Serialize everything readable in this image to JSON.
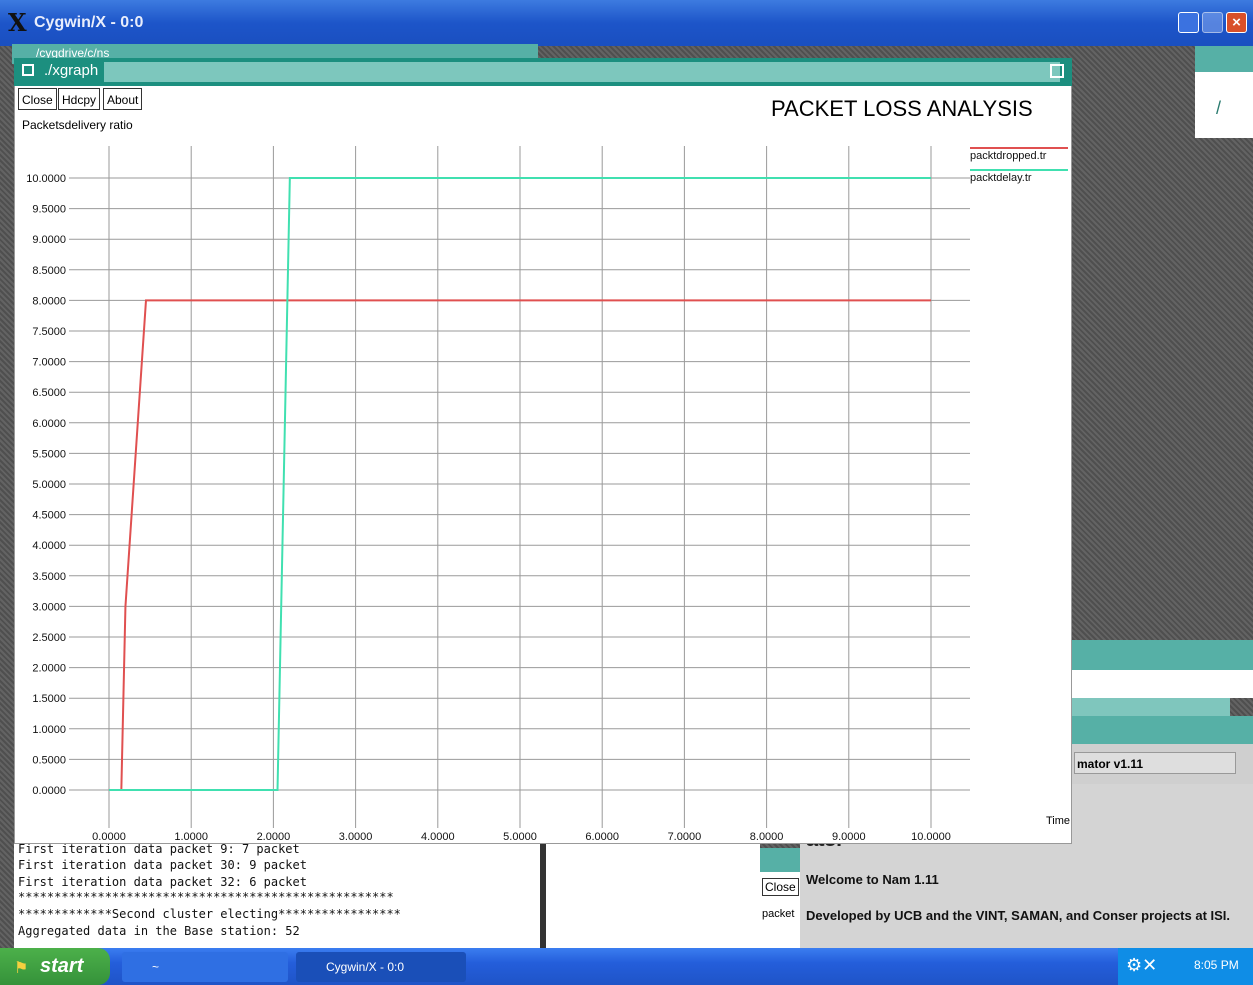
{
  "window": {
    "title": "Cygwin/X - 0:0",
    "logo": "X",
    "close_glyph": "×"
  },
  "background_windows": {
    "cygdrive_title": "/cygdrive/c/ns",
    "nam_field": "mator v1.11",
    "nam_big": "ator",
    "nam_welcome": "Welcome to Nam 1.11",
    "nam_developed": "Developed by UCB and the VINT, SAMAN, and Conser projects at ISI.",
    "small_close": "Close",
    "small_packet": "packet"
  },
  "terminal": {
    "lines": [
      "First iteration data packet 9: 7 packet",
      "First iteration data packet 30: 9 packet",
      "First iteration data packet 32: 6 packet",
      "****************************************************",
      "*************Second cluster electing*****************",
      "Aggregated data in the Base station: 52"
    ]
  },
  "xgraph": {
    "title": "./xgraph",
    "buttons": {
      "close": "Close",
      "hdcpy": "Hdcpy",
      "about": "About"
    }
  },
  "chart_data": {
    "type": "line",
    "title": "PACKET LOSS ANALYSIS",
    "ylabel": "Packetsdelivery ratio",
    "xlabel": "Time",
    "xlim": [
      0,
      10
    ],
    "ylim": [
      0,
      10
    ],
    "x_ticks": [
      "0.0000",
      "1.0000",
      "2.0000",
      "3.0000",
      "4.0000",
      "5.0000",
      "6.0000",
      "7.0000",
      "8.0000",
      "9.0000",
      "10.0000"
    ],
    "y_ticks": [
      "0.0000",
      "0.5000",
      "1.0000",
      "1.5000",
      "2.0000",
      "2.5000",
      "3.0000",
      "3.5000",
      "4.0000",
      "4.5000",
      "5.0000",
      "5.5000",
      "6.0000",
      "6.5000",
      "7.0000",
      "7.5000",
      "8.0000",
      "8.5000",
      "9.0000",
      "9.5000",
      "10.0000"
    ],
    "grid": true,
    "legend_position": "top-right",
    "series": [
      {
        "name": "packtdropped.tr",
        "color": "#e05050",
        "x": [
          0.15,
          0.2,
          0.45,
          10.0
        ],
        "y": [
          0.0,
          3.0,
          8.0,
          8.0
        ]
      },
      {
        "name": "packtdelay.tr",
        "color": "#40e0b0",
        "x": [
          0.0,
          2.05,
          2.2,
          10.0
        ],
        "y": [
          0.0,
          0.0,
          10.0,
          10.0
        ]
      }
    ]
  },
  "taskbar": {
    "start": "start",
    "task1": "~",
    "task2": "Cygwin/X - 0:0",
    "clock": "8:05 PM"
  }
}
